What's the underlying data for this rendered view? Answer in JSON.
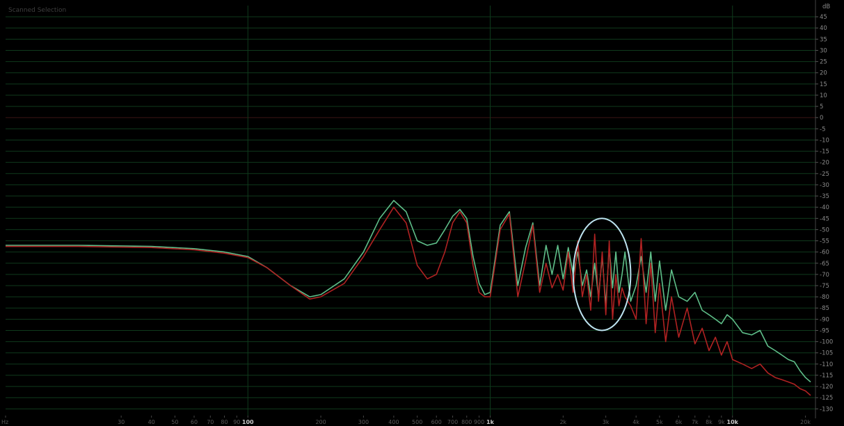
{
  "panel": {
    "title": "Scanned Selection"
  },
  "chart_data": {
    "type": "line",
    "x_scale": "log",
    "y_unit": "dB",
    "xlim": [
      10,
      22000
    ],
    "ylim": [
      -133,
      50
    ],
    "grid": true,
    "y_ticks": [
      45,
      40,
      35,
      30,
      25,
      20,
      15,
      10,
      5,
      0,
      -5,
      -10,
      -15,
      -20,
      -25,
      -30,
      -35,
      -40,
      -45,
      -50,
      -55,
      -60,
      -65,
      -70,
      -75,
      -80,
      -85,
      -90,
      -95,
      -100,
      -105,
      -110,
      -115,
      -120,
      -125,
      -130
    ],
    "y_tick_labels": [
      "45",
      "40",
      "35",
      "30",
      "25",
      "20",
      "15",
      "10",
      "5",
      "0",
      "-5",
      "-10",
      "-15",
      "-20",
      "-25",
      "-30",
      "-35",
      "-40",
      "-45",
      "-50",
      "-55",
      "-60",
      "-65",
      "-70",
      "-75",
      "-80",
      "-85",
      "-90",
      "-95",
      "-100",
      "-105",
      "-110",
      "-115",
      "-120",
      "-125",
      "-130"
    ],
    "x_tick_values": [
      10,
      30,
      40,
      50,
      60,
      70,
      80,
      90,
      100,
      200,
      300,
      400,
      500,
      600,
      700,
      800,
      900,
      1000,
      2000,
      3000,
      4000,
      5000,
      6000,
      7000,
      8000,
      9000,
      10000,
      20000
    ],
    "x_tick_labels": [
      "Hz",
      "30",
      "40",
      "50",
      "60",
      "70",
      "80",
      "90",
      "100",
      "200",
      "300",
      "400",
      "500",
      "600",
      "700",
      "800",
      "900",
      "1k",
      "2k",
      "3k",
      "4k",
      "5k",
      "6k",
      "7k",
      "8k",
      "9k",
      "10k",
      "20k"
    ],
    "x_major_ticks": [
      "100",
      "1k",
      "10k"
    ],
    "series": [
      {
        "color": "#5fbf8a",
        "x": [
          10,
          20,
          40,
          60,
          80,
          100,
          120,
          150,
          180,
          200,
          250,
          300,
          350,
          400,
          450,
          500,
          550,
          600,
          650,
          700,
          750,
          800,
          850,
          900,
          950,
          1000,
          1100,
          1200,
          1300,
          1400,
          1500,
          1600,
          1700,
          1800,
          1900,
          2000,
          2100,
          2200,
          2300,
          2400,
          2500,
          2600,
          2700,
          2800,
          2900,
          3000,
          3100,
          3200,
          3300,
          3400,
          3500,
          3600,
          3800,
          4000,
          4200,
          4400,
          4600,
          4800,
          5000,
          5300,
          5600,
          6000,
          6500,
          7000,
          7500,
          8000,
          8500,
          9000,
          9500,
          10000,
          11000,
          12000,
          13000,
          14000,
          15000,
          16000,
          17000,
          18000,
          19000,
          20000,
          21000
        ],
        "y": [
          -57,
          -57,
          -57.5,
          -58.5,
          -60,
          -62,
          -67,
          -75,
          -80,
          -79,
          -72,
          -60,
          -45,
          -37,
          -42,
          -55,
          -57,
          -56,
          -50,
          -44,
          -41,
          -45,
          -62,
          -74,
          -79,
          -78,
          -48,
          -42,
          -75,
          -58,
          -47,
          -75,
          -57,
          -70,
          -57,
          -72,
          -58,
          -70,
          -60,
          -75,
          -68,
          -80,
          -65,
          -80,
          -62,
          -84,
          -58,
          -76,
          -60,
          -78,
          -70,
          -60,
          -82,
          -75,
          -62,
          -78,
          -60,
          -82,
          -64,
          -86,
          -68,
          -80,
          -82,
          -78,
          -86,
          -88,
          -90,
          -92,
          -88,
          -90,
          -96,
          -97,
          -95,
          -102,
          -104,
          -106,
          -108,
          -109,
          -113,
          -116,
          -118
        ]
      },
      {
        "color": "#b02222",
        "x": [
          10,
          20,
          40,
          60,
          80,
          100,
          120,
          150,
          180,
          200,
          250,
          300,
          350,
          400,
          450,
          500,
          550,
          600,
          650,
          700,
          750,
          800,
          850,
          900,
          950,
          1000,
          1100,
          1200,
          1300,
          1400,
          1500,
          1600,
          1700,
          1800,
          1900,
          2000,
          2100,
          2200,
          2300,
          2400,
          2500,
          2600,
          2700,
          2800,
          2900,
          3000,
          3100,
          3200,
          3300,
          3400,
          3500,
          3600,
          3800,
          4000,
          4200,
          4400,
          4600,
          4800,
          5000,
          5300,
          5600,
          6000,
          6500,
          7000,
          7500,
          8000,
          8500,
          9000,
          9500,
          10000,
          11000,
          12000,
          13000,
          14000,
          15000,
          16000,
          17000,
          18000,
          19000,
          20000,
          21000
        ],
        "y": [
          -57.5,
          -57.5,
          -58,
          -59,
          -60.5,
          -62.5,
          -67,
          -75,
          -81,
          -80,
          -74,
          -62,
          -50,
          -40,
          -47,
          -66,
          -72,
          -70,
          -60,
          -47,
          -42,
          -47,
          -66,
          -78,
          -80,
          -80,
          -50,
          -43,
          -80,
          -64,
          -48,
          -78,
          -65,
          -76,
          -70,
          -77,
          -60,
          -78,
          -55,
          -80,
          -70,
          -86,
          -52,
          -82,
          -60,
          -88,
          -55,
          -90,
          -70,
          -84,
          -76,
          -80,
          -84,
          -90,
          -54,
          -92,
          -65,
          -96,
          -74,
          -100,
          -80,
          -98,
          -85,
          -101,
          -94,
          -104,
          -98,
          -106,
          -100,
          -108,
          -110,
          -112,
          -110,
          -114,
          -116,
          -117,
          -118,
          -119,
          -121,
          -122,
          -124
        ]
      }
    ],
    "annotations": [
      {
        "shape": "ellipse",
        "color": "#bde3f0",
        "x_range": [
          2200,
          3800
        ],
        "y_range": [
          -45,
          -95
        ]
      }
    ]
  }
}
